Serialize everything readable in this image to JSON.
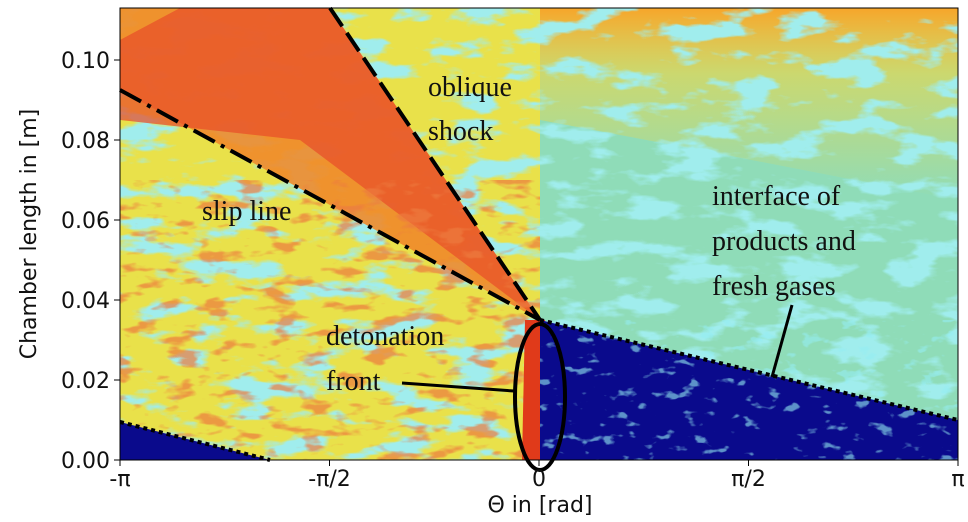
{
  "chart_data": {
    "type": "field",
    "x_label": "Θ in [rad]",
    "y_label": "Chamber length in [m]",
    "xlim": [
      -3.14159,
      3.14159
    ],
    "xticks": [
      {
        "value": -3.14159,
        "label": "-π"
      },
      {
        "value": -1.5708,
        "label": "-π/2"
      },
      0,
      {
        "value": 1.5708,
        "label": "π/2"
      },
      {
        "value": 3.14159,
        "label": "π"
      }
    ],
    "ylim": [
      0,
      0.113
    ],
    "yticks": [
      {
        "value": 0,
        "label": "0.00"
      },
      0.02,
      0.04,
      0.06,
      0.08,
      {
        "value": 0.1,
        "label": "0.10"
      }
    ],
    "annotations": [
      "oblique",
      "shock",
      "slip line",
      "interface of",
      "products and",
      "fresh gases",
      "detonation",
      "front"
    ]
  }
}
